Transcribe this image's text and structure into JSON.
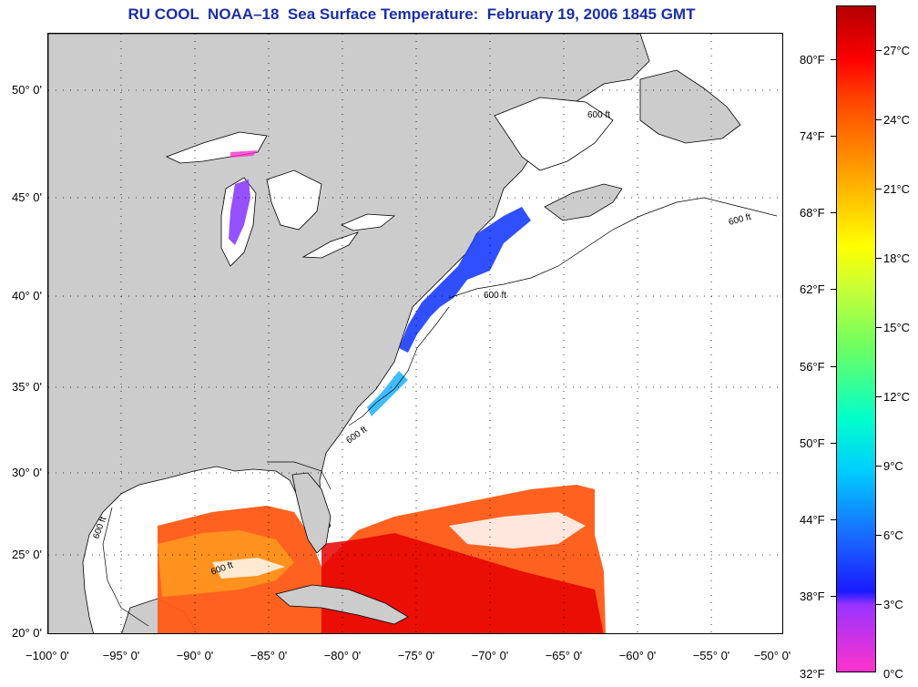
{
  "title": "RU COOL  NOAA–18  Sea Surface Temperature:  February 19, 2006 1845 GMT",
  "map": {
    "lon_range": [
      -100,
      -50
    ],
    "lat_range": [
      20,
      52.5
    ],
    "latitude_labels": [
      "50° 0'",
      "45° 0'",
      "40° 0'",
      "35° 0'",
      "30° 0'",
      "25° 0'",
      "20° 0'"
    ],
    "longitude_labels": [
      "−100° 0'",
      "−95° 0'",
      "−90° 0'",
      "−85° 0'",
      "−80° 0'",
      "−75° 0'",
      "−70° 0'",
      "−65° 0'",
      "−60° 0'",
      "−55° 0'",
      "−50° 0'"
    ],
    "isobath_label": "600 ft",
    "land_color": "#cccccc",
    "ocean_color": "#ffffff"
  },
  "colorbar": {
    "fahrenheit_labels": [
      "80°F",
      "74°F",
      "68°F",
      "62°F",
      "56°F",
      "50°F",
      "44°F",
      "38°F",
      "32°F"
    ],
    "celsius_labels": [
      "27°C",
      "24°C",
      "21°C",
      "18°C",
      "15°C",
      "12°C",
      "9°C",
      "6°C",
      "3°C",
      "0°C"
    ],
    "range_celsius": [
      0,
      29
    ],
    "colors": [
      "#ff33cc",
      "#9933ff",
      "#1a1aff",
      "#00ccff",
      "#00ffcc",
      "#66ff66",
      "#ffff00",
      "#ff9900",
      "#ff0000",
      "#b30000"
    ]
  }
}
